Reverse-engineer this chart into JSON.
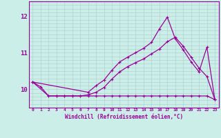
{
  "xlabel": "Windchill (Refroidissement éolien,°C)",
  "background_color": "#cceee8",
  "grid_color": "#aacccc",
  "line_color": "#990099",
  "xlim": [
    -0.5,
    23.5
  ],
  "ylim": [
    9.55,
    12.25
  ],
  "yticks": [
    10,
    11,
    12
  ],
  "ytick_labels": [
    "10",
    "11",
    "12"
  ],
  "xticks": [
    0,
    1,
    2,
    3,
    4,
    5,
    6,
    7,
    8,
    9,
    10,
    11,
    12,
    13,
    14,
    15,
    16,
    17,
    18,
    19,
    20,
    21,
    22,
    23
  ],
  "curve_flat_x": [
    0,
    1,
    2,
    3,
    4,
    5,
    6,
    7,
    8,
    9,
    10,
    11,
    12,
    13,
    14,
    15,
    16,
    17,
    18,
    19,
    20,
    21,
    22,
    23
  ],
  "curve_flat_y": [
    10.2,
    10.07,
    9.82,
    9.82,
    9.82,
    9.82,
    9.82,
    9.82,
    9.82,
    9.82,
    9.82,
    9.82,
    9.82,
    9.82,
    9.82,
    9.82,
    9.82,
    9.82,
    9.82,
    9.82,
    9.82,
    9.82,
    9.82,
    9.72
  ],
  "curve_mid_x": [
    0,
    2,
    3,
    4,
    5,
    6,
    7,
    8,
    9,
    10,
    11,
    12,
    13,
    14,
    15,
    16,
    17,
    18,
    19,
    20,
    21,
    22,
    23
  ],
  "curve_mid_y": [
    10.2,
    9.82,
    9.82,
    9.82,
    9.82,
    9.82,
    9.85,
    9.92,
    10.05,
    10.28,
    10.48,
    10.62,
    10.73,
    10.83,
    10.97,
    11.1,
    11.3,
    11.42,
    11.18,
    10.88,
    10.58,
    10.35,
    9.72
  ],
  "curve_top_x": [
    0,
    7,
    8,
    9,
    10,
    11,
    12,
    13,
    14,
    15,
    16,
    17,
    18,
    19,
    20,
    21,
    22,
    23
  ],
  "curve_top_y": [
    10.2,
    9.92,
    10.1,
    10.25,
    10.52,
    10.75,
    10.88,
    11.0,
    11.12,
    11.28,
    11.65,
    11.97,
    11.38,
    11.08,
    10.75,
    10.48,
    11.15,
    9.72
  ]
}
